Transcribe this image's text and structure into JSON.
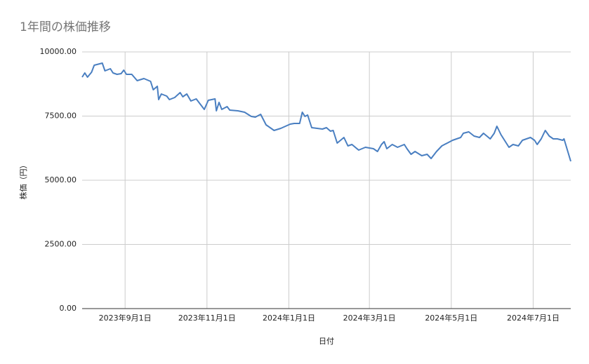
{
  "chart_data": {
    "type": "line",
    "title": "1年間の株価推移",
    "x_label": "日付",
    "y_label": "株価（円）",
    "x": [
      "2023-07-31",
      "2023-08-02",
      "2023-08-04",
      "2023-08-07",
      "2023-08-09",
      "2023-08-15",
      "2023-08-17",
      "2023-08-21",
      "2023-08-23",
      "2023-08-26",
      "2023-08-29",
      "2023-08-31",
      "2023-09-02",
      "2023-09-06",
      "2023-09-10",
      "2023-09-15",
      "2023-09-20",
      "2023-09-22",
      "2023-09-25",
      "2023-09-26",
      "2023-09-28",
      "2023-10-02",
      "2023-10-04",
      "2023-10-08",
      "2023-10-12",
      "2023-10-14",
      "2023-10-17",
      "2023-10-20",
      "2023-10-24",
      "2023-10-30",
      "2023-11-02",
      "2023-11-07",
      "2023-11-08",
      "2023-11-10",
      "2023-11-12",
      "2023-11-16",
      "2023-11-18",
      "2023-11-24",
      "2023-11-29",
      "2023-12-04",
      "2023-12-07",
      "2023-12-11",
      "2023-12-15",
      "2023-12-21",
      "2023-12-26",
      "2024-01-02",
      "2024-01-05",
      "2024-01-09",
      "2024-01-11",
      "2024-01-13",
      "2024-01-15",
      "2024-01-18",
      "2024-01-26",
      "2024-01-29",
      "2024-02-01",
      "2024-02-03",
      "2024-02-06",
      "2024-02-11",
      "2024-02-14",
      "2024-02-17",
      "2024-02-22",
      "2024-02-27",
      "2024-03-04",
      "2024-03-07",
      "2024-03-10",
      "2024-03-12",
      "2024-03-14",
      "2024-03-18",
      "2024-03-22",
      "2024-03-27",
      "2024-03-29",
      "2024-04-01",
      "2024-04-04",
      "2024-04-09",
      "2024-04-13",
      "2024-04-16",
      "2024-04-20",
      "2024-04-24",
      "2024-05-02",
      "2024-05-08",
      "2024-05-10",
      "2024-05-14",
      "2024-05-18",
      "2024-05-22",
      "2024-05-25",
      "2024-05-30",
      "2024-06-02",
      "2024-06-04",
      "2024-06-07",
      "2024-06-09",
      "2024-06-13",
      "2024-06-16",
      "2024-06-20",
      "2024-06-23",
      "2024-06-29",
      "2024-07-02",
      "2024-07-04",
      "2024-07-07",
      "2024-07-10",
      "2024-07-13",
      "2024-07-16",
      "2024-07-19",
      "2024-07-23",
      "2024-07-24",
      "2024-07-29"
    ],
    "series": [
      {
        "name": "株価",
        "color": "#4a7fc1",
        "values": [
          9016,
          9180,
          9016,
          9208,
          9481,
          9563,
          9262,
          9344,
          9180,
          9126,
          9153,
          9290,
          9126,
          9126,
          8880,
          8962,
          8852,
          8525,
          8661,
          8142,
          8361,
          8279,
          8142,
          8224,
          8415,
          8251,
          8361,
          8087,
          8169,
          7760,
          8115,
          8169,
          7705,
          8033,
          7760,
          7869,
          7732,
          7705,
          7650,
          7486,
          7459,
          7568,
          7158,
          6940,
          7022,
          7186,
          7213,
          7213,
          7650,
          7486,
          7541,
          7049,
          6995,
          7049,
          6913,
          6940,
          6448,
          6667,
          6339,
          6393,
          6175,
          6284,
          6230,
          6120,
          6393,
          6503,
          6230,
          6393,
          6284,
          6393,
          6230,
          6011,
          6120,
          5956,
          6011,
          5847,
          6120,
          6339,
          6557,
          6667,
          6831,
          6885,
          6721,
          6667,
          6831,
          6612,
          6831,
          7104,
          6776,
          6612,
          6284,
          6393,
          6339,
          6557,
          6667,
          6557,
          6393,
          6612,
          6940,
          6721,
          6612,
          6612,
          6557,
          6612,
          5738
        ]
      }
    ],
    "xlim": [
      "2023-07-31",
      "2024-07-29"
    ],
    "xticks": [
      {
        "value": "2023-09-01",
        "label": "2023年9月1日"
      },
      {
        "value": "2023-11-01",
        "label": "2023年11月1日"
      },
      {
        "value": "2024-01-01",
        "label": "2024年1月1日"
      },
      {
        "value": "2024-03-01",
        "label": "2024年3月1日"
      },
      {
        "value": "2024-05-01",
        "label": "2024年5月1日"
      },
      {
        "value": "2024-07-01",
        "label": "2024年7月1日"
      }
    ],
    "ylim": [
      0,
      10000
    ],
    "yticks": [
      {
        "value": 0,
        "label": "0.00"
      },
      {
        "value": 2500,
        "label": "2500.00"
      },
      {
        "value": 5000,
        "label": "5000.00"
      },
      {
        "value": 7500,
        "label": "7500.00"
      },
      {
        "value": 10000,
        "label": "10000.00"
      }
    ],
    "grid": true
  }
}
